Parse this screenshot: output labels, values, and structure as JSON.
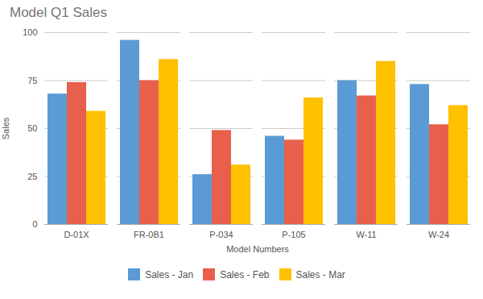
{
  "chart_data": {
    "type": "bar",
    "title": "Model Q1 Sales",
    "xlabel": "Model Numbers",
    "ylabel": "Sales",
    "categories": [
      "D-01X",
      "FR-0B1",
      "P-034",
      "P-105",
      "W-11",
      "W-24"
    ],
    "series": [
      {
        "name": "Sales - Jan",
        "color": "#5B9BD5",
        "values": [
          68,
          96,
          26,
          46,
          75,
          73
        ]
      },
      {
        "name": "Sales - Feb",
        "color": "#E8604C",
        "values": [
          74,
          75,
          49,
          44,
          67,
          52
        ]
      },
      {
        "name": "Sales - Mar",
        "color": "#FFC000",
        "values": [
          59,
          86,
          31,
          66,
          85,
          62
        ]
      }
    ],
    "ylim": [
      0,
      100
    ],
    "yticks": [
      0,
      25,
      50,
      75,
      100
    ],
    "grid": true,
    "legend": "bottom"
  }
}
